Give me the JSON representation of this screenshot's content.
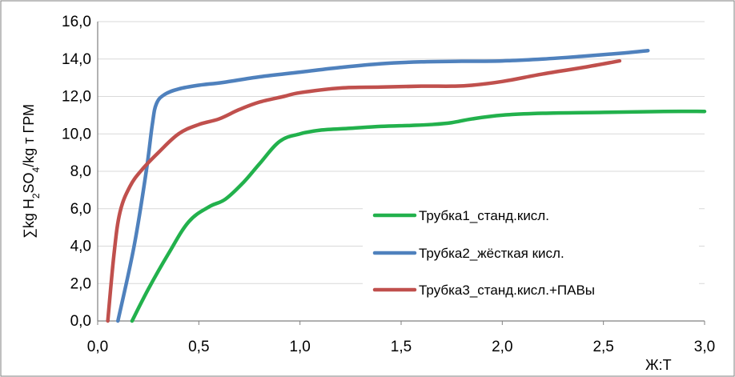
{
  "chart_data": {
    "type": "line",
    "xlabel": "Ж:Т",
    "ylabel": {
      "parts": [
        {
          "t": "∑kg H",
          "sub": false
        },
        {
          "t": "2",
          "sub": true
        },
        {
          "t": "SO",
          "sub": false
        },
        {
          "t": "4",
          "sub": true
        },
        {
          "t": "/kg  т ГРМ",
          "sub": false
        }
      ]
    },
    "xlim": [
      0,
      3
    ],
    "ylim": [
      0,
      16
    ],
    "xticks": [
      "0,0",
      "0,5",
      "1,0",
      "1,5",
      "2,0",
      "2,5",
      "3,0"
    ],
    "xtick_values": [
      0,
      0.5,
      1.0,
      1.5,
      2.0,
      2.5,
      3.0
    ],
    "yticks": [
      "0,0",
      "2,0",
      "4,0",
      "6,0",
      "8,0",
      "10,0",
      "12,0",
      "14,0",
      "16,0"
    ],
    "ytick_values": [
      0,
      2,
      4,
      6,
      8,
      10,
      12,
      14,
      16
    ],
    "grid": "horizontal",
    "legend_position": "bottom-right inside",
    "series": [
      {
        "name": "Трубка1_станд.кисл.",
        "color": "#22b14c",
        "points": [
          [
            0.17,
            0
          ],
          [
            0.25,
            1.7
          ],
          [
            0.35,
            3.6
          ],
          [
            0.45,
            5.3
          ],
          [
            0.55,
            6.1
          ],
          [
            0.63,
            6.5
          ],
          [
            0.72,
            7.4
          ],
          [
            0.8,
            8.4
          ],
          [
            0.9,
            9.6
          ],
          [
            1.0,
            10.0
          ],
          [
            1.1,
            10.2
          ],
          [
            1.25,
            10.3
          ],
          [
            1.4,
            10.4
          ],
          [
            1.55,
            10.45
          ],
          [
            1.65,
            10.5
          ],
          [
            1.75,
            10.6
          ],
          [
            1.85,
            10.8
          ],
          [
            2.0,
            11.0
          ],
          [
            2.2,
            11.1
          ],
          [
            2.5,
            11.15
          ],
          [
            2.8,
            11.2
          ],
          [
            3.0,
            11.2
          ]
        ]
      },
      {
        "name": "Трубка2_жёсткая кисл.",
        "color": "#4f81bd",
        "points": [
          [
            0.1,
            0
          ],
          [
            0.18,
            4.0
          ],
          [
            0.24,
            8.0
          ],
          [
            0.27,
            10.5
          ],
          [
            0.29,
            11.6
          ],
          [
            0.33,
            12.1
          ],
          [
            0.4,
            12.4
          ],
          [
            0.5,
            12.6
          ],
          [
            0.62,
            12.75
          ],
          [
            0.8,
            13.05
          ],
          [
            1.0,
            13.3
          ],
          [
            1.2,
            13.55
          ],
          [
            1.4,
            13.75
          ],
          [
            1.6,
            13.85
          ],
          [
            1.8,
            13.88
          ],
          [
            2.0,
            13.9
          ],
          [
            2.2,
            14.0
          ],
          [
            2.4,
            14.15
          ],
          [
            2.6,
            14.32
          ],
          [
            2.72,
            14.45
          ]
        ]
      },
      {
        "name": "Трубка3_станд.кисл.+ПАВы",
        "color": "#c0504d",
        "points": [
          [
            0.05,
            0
          ],
          [
            0.08,
            3.5
          ],
          [
            0.11,
            5.8
          ],
          [
            0.16,
            7.2
          ],
          [
            0.22,
            8.1
          ],
          [
            0.3,
            9.0
          ],
          [
            0.4,
            10.0
          ],
          [
            0.5,
            10.5
          ],
          [
            0.6,
            10.8
          ],
          [
            0.7,
            11.3
          ],
          [
            0.8,
            11.7
          ],
          [
            0.92,
            12.0
          ],
          [
            1.0,
            12.2
          ],
          [
            1.2,
            12.45
          ],
          [
            1.4,
            12.5
          ],
          [
            1.6,
            12.55
          ],
          [
            1.75,
            12.55
          ],
          [
            1.85,
            12.6
          ],
          [
            2.0,
            12.8
          ],
          [
            2.2,
            13.2
          ],
          [
            2.4,
            13.55
          ],
          [
            2.58,
            13.9
          ]
        ]
      }
    ]
  }
}
